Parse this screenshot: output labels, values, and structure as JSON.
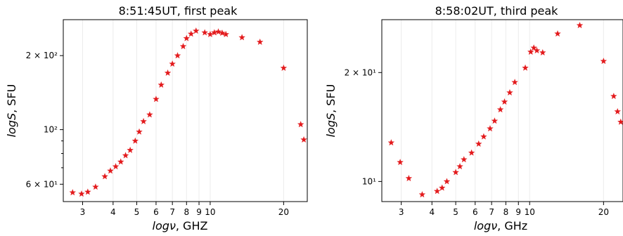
{
  "chart_data": [
    {
      "type": "scatter",
      "title": "8:51:45UT, first peak",
      "xlabel_var": "logν",
      "xlabel_unit": ", GHZ",
      "ylabel_var": "logS",
      "ylabel_unit": ", SFU",
      "xscale": "log",
      "yscale": "log",
      "xlim": [
        2.5,
        25
      ],
      "ylim": [
        51,
        280
      ],
      "x_ticks": [
        3,
        4,
        5,
        6,
        7,
        8,
        9,
        10,
        20
      ],
      "x_tick_labels": [
        "3",
        "4",
        "5",
        "6",
        "7",
        "8",
        "9",
        "10",
        "20"
      ],
      "y_ticks": [
        60,
        100,
        200
      ],
      "y_tick_labels": [
        "6 × 10¹",
        "10²",
        "2 × 10²"
      ],
      "grid": "vertical",
      "marker": "star",
      "color": "#e31a1c",
      "series": [
        {
          "x": [
            2.73,
            2.97,
            3.15,
            3.39,
            3.7,
            3.9,
            4.1,
            4.3,
            4.5,
            4.7,
            4.93,
            5.12,
            5.33,
            5.65,
            6.0,
            6.3,
            6.7,
            7.0,
            7.35,
            7.75,
            8.0,
            8.35,
            8.75,
            9.5,
            10.0,
            10.4,
            10.8,
            11.2,
            11.6,
            13.5,
            16.0,
            20.0,
            23.5,
            24.2
          ],
          "y": [
            55.5,
            54.8,
            55.8,
            58.5,
            64.5,
            68.0,
            70.8,
            74.0,
            78.5,
            82.5,
            90.0,
            98.0,
            108.0,
            115.0,
            133.0,
            152.0,
            170.0,
            185.0,
            200.0,
            218.0,
            235.0,
            245.0,
            252.0,
            248.0,
            244.0,
            248.0,
            250.0,
            247.0,
            244.0,
            237.0,
            227.0,
            178.0,
            105.0,
            91.0
          ]
        }
      ]
    },
    {
      "type": "scatter",
      "title": "8:58:02UT, third peak",
      "xlabel_var": "logν",
      "xlabel_unit": ", GHz",
      "ylabel_var": "logS",
      "ylabel_unit": ", SFU",
      "xscale": "log",
      "yscale": "log",
      "xlim": [
        2.5,
        24
      ],
      "ylim": [
        8.8,
        28
      ],
      "x_ticks": [
        3,
        4,
        5,
        6,
        7,
        8,
        9,
        10,
        20
      ],
      "x_tick_labels": [
        "3",
        "4",
        "5",
        "6",
        "7",
        "8",
        "9",
        "10",
        "20"
      ],
      "y_ticks": [
        10,
        20
      ],
      "y_tick_labels": [
        "10¹",
        "2 × 10¹"
      ],
      "grid": "vertical",
      "marker": "star",
      "color": "#e31a1c",
      "series": [
        {
          "x": [
            2.73,
            2.97,
            3.22,
            3.65,
            4.2,
            4.4,
            4.6,
            5.0,
            5.2,
            5.4,
            5.8,
            6.2,
            6.5,
            6.9,
            7.2,
            7.6,
            7.9,
            8.3,
            8.7,
            9.6,
            10.1,
            10.4,
            10.7,
            11.3,
            13.0,
            16.0,
            20.0,
            22.0,
            22.8,
            23.5
          ],
          "y": [
            12.8,
            11.3,
            10.2,
            9.2,
            9.4,
            9.6,
            10.0,
            10.6,
            11.0,
            11.5,
            12.0,
            12.7,
            13.3,
            14.0,
            14.7,
            15.8,
            16.6,
            17.6,
            18.8,
            20.6,
            22.8,
            23.4,
            23.0,
            22.7,
            25.6,
            27.0,
            21.5,
            17.2,
            15.6,
            14.6
          ]
        }
      ]
    }
  ]
}
